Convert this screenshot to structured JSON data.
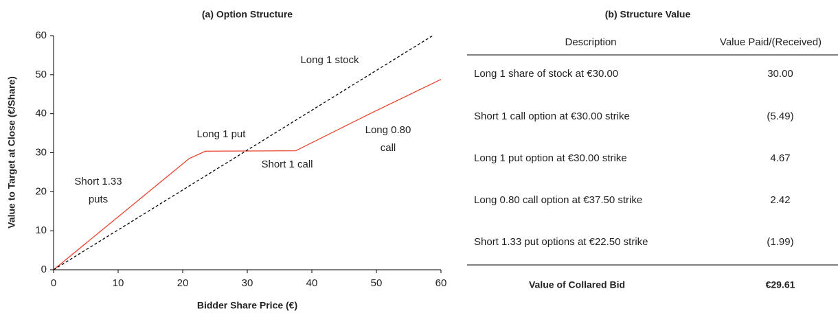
{
  "chart_data": {
    "type": "line",
    "title": "(a) Option Structure",
    "xlabel": "Bidder Share Price (€)",
    "ylabel": "Value to Target at Close (€/Share)",
    "series": [
      {
        "name": "Collared bid",
        "color": "#e8412c",
        "dashed": false,
        "x": [
          0,
          21,
          23.5,
          37.5,
          49,
          60
        ],
        "values": [
          0,
          28.5,
          30.4,
          30.5,
          40,
          48.8
        ]
      },
      {
        "name": "Long 1 stock",
        "color": "#000000",
        "dashed": true,
        "x": [
          0,
          58.7
        ],
        "values": [
          0,
          60
        ]
      }
    ],
    "annotations": [
      {
        "lines": [
          "Long 1 stock"
        ]
      },
      {
        "lines": [
          "Long 1 put"
        ]
      },
      {
        "lines": [
          "Short 1 call"
        ]
      },
      {
        "lines": [
          "Long 0.80",
          "call"
        ]
      },
      {
        "lines": [
          "Short 1.33",
          "puts"
        ]
      }
    ],
    "xlim": [
      0,
      60
    ],
    "xticks": [
      0,
      10,
      20,
      30,
      40,
      50,
      60
    ],
    "ylim": [
      0,
      60
    ],
    "yticks": [
      0,
      10,
      20,
      30,
      40,
      50,
      60
    ]
  },
  "table": {
    "title": "(b) Structure Value",
    "columns": [
      "Description",
      "Value Paid/(Received)"
    ],
    "rows": [
      [
        "Long 1 share of stock at €30.00",
        "30.00"
      ],
      [
        "Short 1 call option at €30.00 strike",
        "(5.49)"
      ],
      [
        "Long 1 put option at €30.00 strike",
        "4.67"
      ],
      [
        "Long 0.80 call option at €37.50 strike",
        "2.42"
      ],
      [
        "Short 1.33 put options at €22.50 strike",
        "(1.99)"
      ]
    ],
    "total": [
      "Value of Collared Bid",
      "€29.61"
    ]
  }
}
